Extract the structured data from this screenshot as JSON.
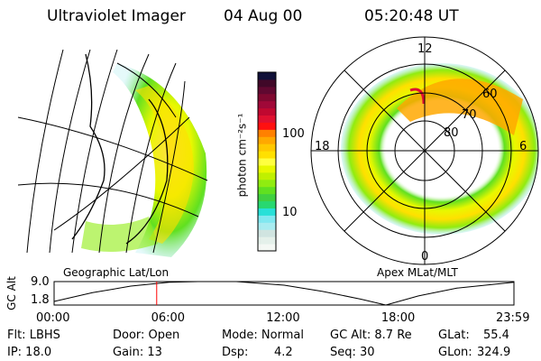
{
  "header": {
    "instrument": "Ultraviolet Imager",
    "date": "04 Aug 00",
    "time": "05:20:48 UT"
  },
  "panels": {
    "left_label": "Geographic Lat/Lon",
    "right_label": "Apex MLat/MLT"
  },
  "polar": {
    "mlt_labels": [
      "12",
      "18",
      "6",
      "0"
    ],
    "lat_labels": [
      "60",
      "70",
      "80"
    ]
  },
  "colorbar": {
    "label": "photon cm⁻²s⁻¹",
    "ticks": [
      "100",
      "10"
    ],
    "colors": [
      "#f4f8f4",
      "#e4f0ea",
      "#d0e4e0",
      "#a8ecf0",
      "#80e8f0",
      "#28e0d8",
      "#28d870",
      "#40d040",
      "#60e020",
      "#90ec10",
      "#c0f000",
      "#e8f800",
      "#ffff40",
      "#ffe000",
      "#ffc800",
      "#ffa800",
      "#ff8000",
      "#ff1010",
      "#e01030",
      "#c00830",
      "#a00838",
      "#800830",
      "#600830",
      "#400828",
      "#101038"
    ]
  },
  "status": {
    "flt": "Flt: LBHS",
    "ip": "IP: 18.0",
    "door": "Door: Open",
    "gain": "Gain: 13",
    "mode": "Mode: Normal",
    "dsp_label": "Dsp:",
    "dsp_value": "4.2",
    "gcalt": "GC Alt: 8.7 Re",
    "seq": "Seq: 30",
    "glat_label": "GLat:",
    "glat_value": "55.4",
    "glon_label": "GLon:",
    "glon_value": "324.9"
  },
  "chart_data": {
    "type": "line",
    "ylabel": "GC Alt",
    "ylim": [
      1.8,
      9.0
    ],
    "yticks": [
      "9.0",
      "1.8"
    ],
    "xlim": [
      0,
      23.98
    ],
    "xticks": [
      "00:00",
      "06:00",
      "12:00",
      "18:00",
      "23:59"
    ],
    "x": [
      0,
      2,
      4,
      6,
      7.5,
      9.5,
      12,
      14,
      16,
      17.3,
      19,
      21,
      23.98
    ],
    "y": [
      2.9,
      5.6,
      7.6,
      8.8,
      9.0,
      9.0,
      7.9,
      6.0,
      3.6,
      1.8,
      4.6,
      7.0,
      8.8
    ],
    "marker_time": 5.35,
    "marker_color": "#ff0000"
  }
}
